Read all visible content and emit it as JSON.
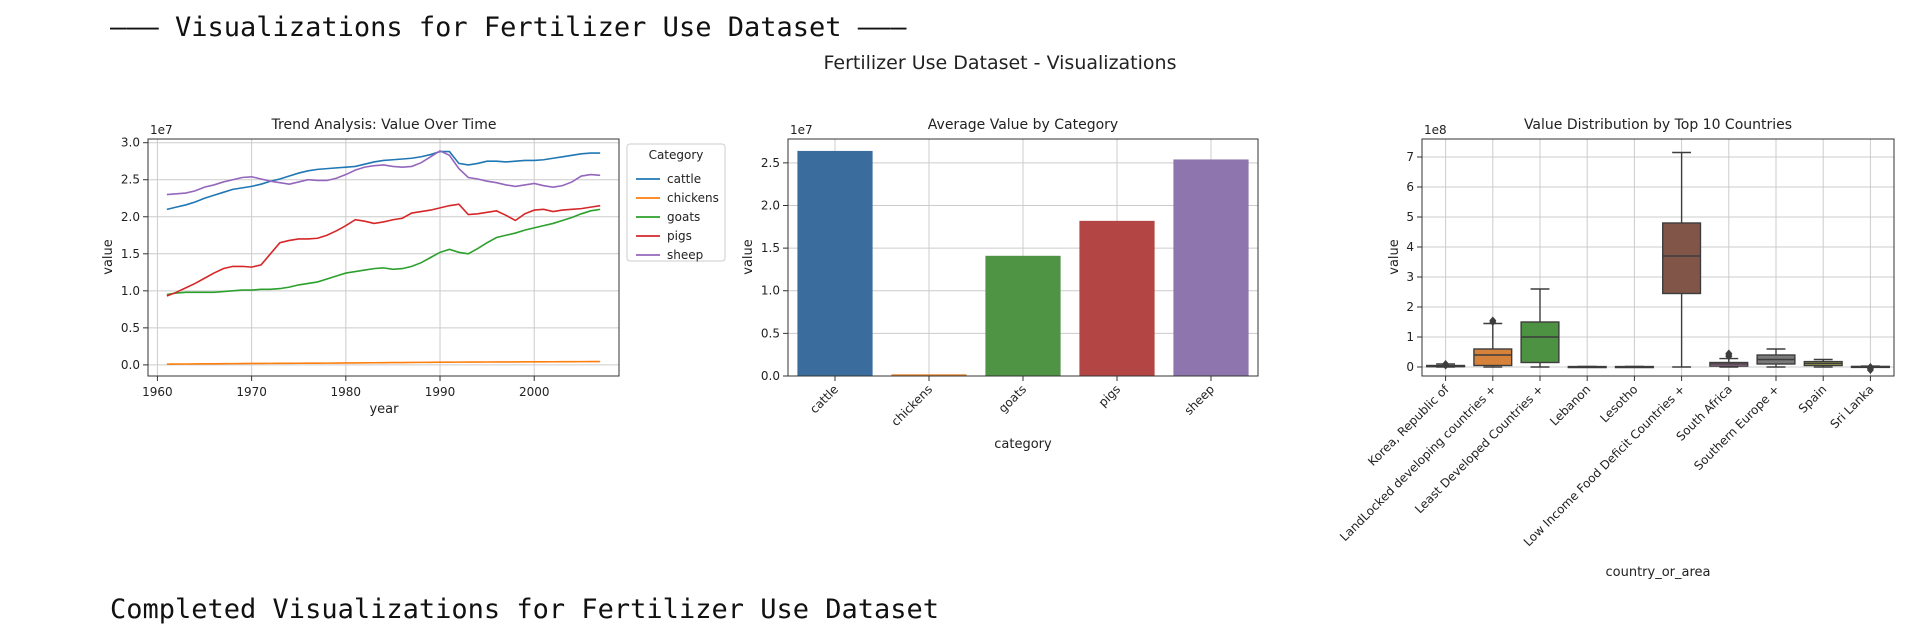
{
  "header": {
    "text": "––– Visualizations for Fertilizer Use Dataset –––"
  },
  "footer": {
    "text": "Completed Visualizations for Fertilizer Use Dataset"
  },
  "figure": {
    "suptitle": "Fertilizer Use Dataset - Visualizations"
  },
  "colors": {
    "cattle": "#1f77b4",
    "chickens": "#ff7f0e",
    "goats": "#2ca02c",
    "pigs": "#d62728",
    "sheep": "#9467bd",
    "bar_palette": [
      "#3a6d9e",
      "#e6862e",
      "#4f9445",
      "#b34545",
      "#8f75ae"
    ],
    "box_palette": [
      "#3a6d9e",
      "#d7823a",
      "#4d9242",
      "#b04545",
      "#8a72ad",
      "#815649",
      "#cf85bd",
      "#7a7a7a",
      "#a8a84c",
      "#4fabbd"
    ]
  },
  "chart_data": [
    {
      "type": "line",
      "title": "Trend Analysis: Value Over Time",
      "xlabel": "year",
      "ylabel": "value",
      "offset_label": "1e7",
      "xlim": [
        1959,
        2009
      ],
      "ylim": [
        -1500000,
        30500000
      ],
      "xticks": [
        1960,
        1970,
        1980,
        1990,
        2000
      ],
      "xtick_labels": [
        "1960",
        "1970",
        "1980",
        "1990",
        "2000"
      ],
      "yticks": [
        0,
        5000000,
        10000000,
        15000000,
        20000000,
        25000000,
        30000000
      ],
      "ytick_labels": [
        "0.0",
        "0.5",
        "1.0",
        "1.5",
        "2.0",
        "2.5",
        "3.0"
      ],
      "grid": true,
      "legend": {
        "title": "Category",
        "placement": "outside-right"
      },
      "x": [
        1961,
        1962,
        1963,
        1964,
        1965,
        1966,
        1967,
        1968,
        1969,
        1970,
        1971,
        1972,
        1973,
        1974,
        1975,
        1976,
        1977,
        1978,
        1979,
        1980,
        1981,
        1982,
        1983,
        1984,
        1985,
        1986,
        1987,
        1988,
        1989,
        1990,
        1991,
        1992,
        1993,
        1994,
        1995,
        1996,
        1997,
        1998,
        1999,
        2000,
        2001,
        2002,
        2003,
        2004,
        2005,
        2006,
        2007
      ],
      "series": [
        {
          "name": "cattle",
          "values": [
            21000000,
            21300000,
            21600000,
            22000000,
            22500000,
            22900000,
            23300000,
            23700000,
            23900000,
            24100000,
            24400000,
            24800000,
            25100000,
            25500000,
            25900000,
            26200000,
            26400000,
            26500000,
            26600000,
            26700000,
            26800000,
            27100000,
            27400000,
            27600000,
            27700000,
            27800000,
            27900000,
            28100000,
            28400000,
            28800000,
            28800000,
            27200000,
            27000000,
            27200000,
            27500000,
            27500000,
            27400000,
            27500000,
            27600000,
            27600000,
            27700000,
            27900000,
            28100000,
            28300000,
            28500000,
            28600000,
            28600000
          ]
        },
        {
          "name": "chickens",
          "values": [
            100000,
            110000,
            120000,
            130000,
            140000,
            150000,
            160000,
            170000,
            180000,
            190000,
            200000,
            205000,
            210000,
            215000,
            220000,
            225000,
            230000,
            240000,
            250000,
            260000,
            270000,
            280000,
            290000,
            300000,
            310000,
            320000,
            330000,
            340000,
            350000,
            360000,
            370000,
            375000,
            380000,
            385000,
            390000,
            395000,
            400000,
            405000,
            410000,
            415000,
            420000,
            425000,
            430000,
            435000,
            440000,
            445000,
            450000
          ]
        },
        {
          "name": "goats",
          "values": [
            9500000,
            9700000,
            9800000,
            9800000,
            9800000,
            9800000,
            9900000,
            10000000,
            10100000,
            10100000,
            10200000,
            10200000,
            10300000,
            10500000,
            10800000,
            11000000,
            11200000,
            11600000,
            12000000,
            12400000,
            12600000,
            12800000,
            13000000,
            13100000,
            12900000,
            13000000,
            13300000,
            13800000,
            14500000,
            15200000,
            15600000,
            15200000,
            15000000,
            15700000,
            16500000,
            17200000,
            17500000,
            17800000,
            18200000,
            18500000,
            18800000,
            19100000,
            19500000,
            19900000,
            20400000,
            20800000,
            21000000
          ]
        },
        {
          "name": "pigs",
          "values": [
            9300000,
            9800000,
            10400000,
            11000000,
            11700000,
            12400000,
            13000000,
            13300000,
            13300000,
            13200000,
            13500000,
            15000000,
            16500000,
            16800000,
            17000000,
            17000000,
            17100000,
            17500000,
            18100000,
            18800000,
            19600000,
            19400000,
            19100000,
            19300000,
            19600000,
            19800000,
            20500000,
            20700000,
            20900000,
            21200000,
            21500000,
            21700000,
            20300000,
            20400000,
            20600000,
            20800000,
            20200000,
            19500000,
            20400000,
            20900000,
            21000000,
            20700000,
            20900000,
            21000000,
            21100000,
            21300000,
            21500000
          ]
        },
        {
          "name": "sheep",
          "values": [
            23000000,
            23100000,
            23200000,
            23500000,
            24000000,
            24300000,
            24700000,
            25000000,
            25300000,
            25400000,
            25100000,
            24800000,
            24600000,
            24400000,
            24700000,
            25000000,
            24900000,
            24900000,
            25200000,
            25700000,
            26300000,
            26700000,
            26900000,
            27000000,
            26800000,
            26700000,
            26800000,
            27300000,
            28100000,
            28900000,
            28300000,
            26500000,
            25300000,
            25100000,
            24800000,
            24600000,
            24300000,
            24100000,
            24300000,
            24500000,
            24200000,
            24000000,
            24200000,
            24700000,
            25500000,
            25700000,
            25600000
          ]
        }
      ]
    },
    {
      "type": "bar",
      "title": "Average Value by Category",
      "xlabel": "category",
      "ylabel": "value",
      "offset_label": "1e7",
      "categories": [
        "cattle",
        "chickens",
        "goats",
        "pigs",
        "sheep"
      ],
      "values": [
        26400000,
        200000,
        14100000,
        18200000,
        25400000
      ],
      "ylim": [
        0,
        27800000
      ],
      "yticks": [
        0,
        5000000,
        10000000,
        15000000,
        20000000,
        25000000
      ],
      "ytick_labels": [
        "0.0",
        "0.5",
        "1.0",
        "1.5",
        "2.0",
        "2.5"
      ],
      "grid": true
    },
    {
      "type": "box",
      "title": "Value Distribution by Top 10 Countries",
      "xlabel": "country_or_area",
      "ylabel": "value",
      "offset_label": "1e8",
      "ylim": [
        -30000000,
        760000000
      ],
      "yticks": [
        0,
        100000000,
        200000000,
        300000000,
        400000000,
        500000000,
        600000000,
        700000000
      ],
      "ytick_labels": [
        "0",
        "1",
        "2",
        "3",
        "4",
        "5",
        "6",
        "7"
      ],
      "grid": true,
      "categories": [
        "Korea, Republic of",
        "LandLocked developing countries +",
        "Least Developed Countries +",
        "Lebanon",
        "Lesotho",
        "Low Income Food Deficit Countries +",
        "South Africa",
        "Southern Europe +",
        "Spain",
        "Sri Lanka"
      ],
      "boxes": [
        {
          "whislo": 0,
          "q1": 1000000,
          "med": 3000000,
          "q3": 5000000,
          "whishi": 10000000,
          "fliers": [
            10000000,
            5000000
          ]
        },
        {
          "whislo": 0,
          "q1": 5000000,
          "med": 40000000,
          "q3": 60000000,
          "whishi": 145000000,
          "fliers": [
            150000000,
            155000000
          ]
        },
        {
          "whislo": 0,
          "q1": 15000000,
          "med": 100000000,
          "q3": 150000000,
          "whishi": 260000000,
          "fliers": []
        },
        {
          "whislo": 0,
          "q1": 500000,
          "med": 1000000,
          "q3": 1500000,
          "whishi": 2000000,
          "fliers": []
        },
        {
          "whislo": 0,
          "q1": 500000,
          "med": 1000000,
          "q3": 1500000,
          "whishi": 2000000,
          "fliers": []
        },
        {
          "whislo": 0,
          "q1": 245000000,
          "med": 370000000,
          "q3": 480000000,
          "whishi": 715000000,
          "fliers": []
        },
        {
          "whislo": 0,
          "q1": 3000000,
          "med": 10000000,
          "q3": 15000000,
          "whishi": 28000000,
          "fliers": [
            35000000,
            40000000,
            45000000
          ]
        },
        {
          "whislo": 0,
          "q1": 10000000,
          "med": 25000000,
          "q3": 40000000,
          "whishi": 60000000,
          "fliers": []
        },
        {
          "whislo": 0,
          "q1": 5000000,
          "med": 12000000,
          "q3": 18000000,
          "whishi": 25000000,
          "fliers": []
        },
        {
          "whislo": 0,
          "q1": 500000,
          "med": 1000000,
          "q3": 2000000,
          "whishi": 3000000,
          "fliers": [
            0,
            -5000000,
            -10000000
          ]
        }
      ]
    }
  ]
}
